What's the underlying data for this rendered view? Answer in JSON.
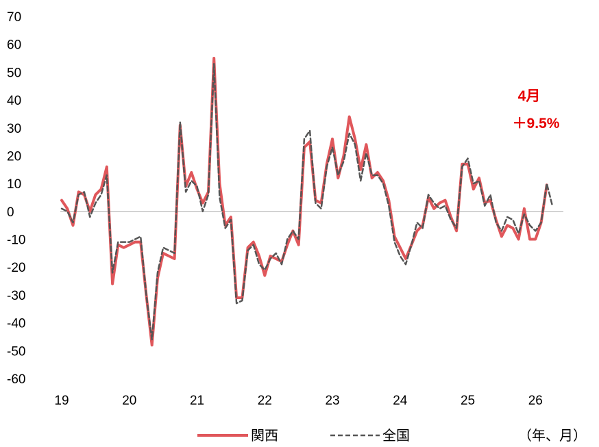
{
  "chart_data": {
    "type": "line",
    "y_ticks": [
      70,
      60,
      50,
      40,
      30,
      20,
      10,
      0,
      -10,
      -20,
      -30,
      -40,
      -50,
      -60
    ],
    "ylim": [
      -60,
      70
    ],
    "x_ticks": [
      "19",
      "20",
      "21",
      "22",
      "23",
      "24",
      "25",
      "26"
    ],
    "x_unit": "（年、月）",
    "grid": false,
    "zero_line": true,
    "legend_position": "bottom",
    "annotation": {
      "line1": "4月",
      "line2": "＋9.5%",
      "color": "#e60000"
    },
    "series": [
      {
        "name": "関西",
        "color": "#e0575b",
        "style": "solid",
        "values": [
          4,
          1,
          -5,
          7,
          6,
          0,
          6,
          8,
          16,
          -26,
          -12,
          -13,
          -12,
          -11,
          -11,
          -30,
          -48,
          -24,
          -15,
          -16,
          -17,
          31,
          9,
          14,
          8,
          3,
          7,
          55,
          10,
          -5,
          -2,
          -31,
          -31,
          -13,
          -11,
          -16,
          -23,
          -16,
          -17,
          -18,
          -12,
          -7,
          -12,
          23,
          25,
          4,
          3,
          17,
          26,
          12,
          20,
          34,
          26,
          15,
          24,
          12,
          14,
          11,
          4,
          -9,
          -13,
          -17,
          -12,
          -7,
          -5,
          5,
          1,
          3,
          4,
          -2,
          -7,
          17,
          17,
          8,
          12,
          3,
          4,
          -3,
          -9,
          -5,
          -6,
          -10,
          1,
          -10,
          -10,
          -4,
          9.5
        ]
      },
      {
        "name": "全国",
        "color": "#555555",
        "style": "dashed",
        "values": [
          1,
          0,
          -4,
          6,
          7,
          -2,
          3,
          6,
          13,
          -22,
          -11,
          -11,
          -11,
          -10,
          -9,
          -30,
          -46,
          -22,
          -13,
          -14,
          -15,
          32,
          7,
          11,
          9,
          0,
          6,
          53,
          5,
          -6,
          -3,
          -33,
          -32,
          -14,
          -12,
          -19,
          -21,
          -17,
          -15,
          -19,
          -10,
          -7,
          -10,
          26,
          29,
          3,
          1,
          16,
          23,
          13,
          18,
          28,
          24,
          11,
          21,
          13,
          13,
          10,
          2,
          -11,
          -16,
          -19,
          -12,
          -4,
          -6,
          6,
          3,
          1,
          2,
          -3,
          -6,
          16,
          19,
          10,
          11,
          2,
          6,
          -4,
          -7,
          -2,
          -3,
          -8,
          -1,
          -5,
          -7,
          -4,
          10,
          2
        ]
      }
    ]
  }
}
